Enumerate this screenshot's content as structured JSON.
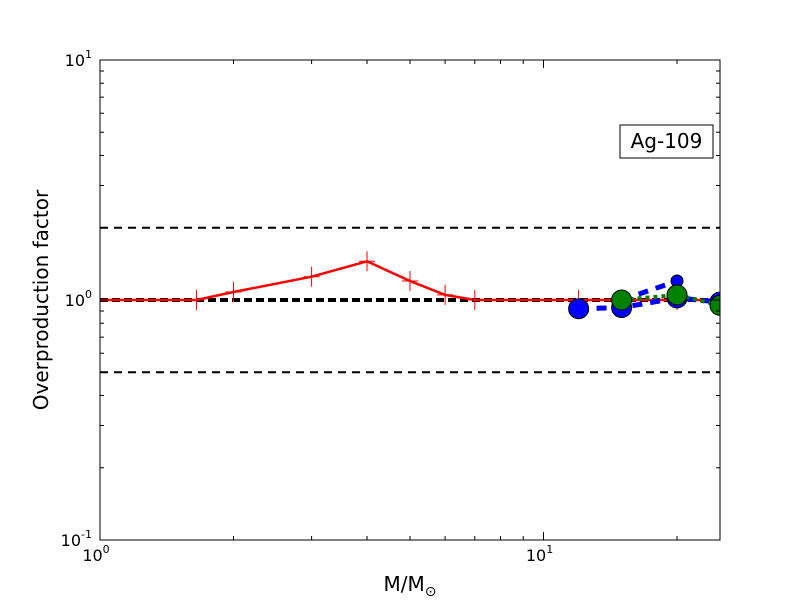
{
  "chart_data": {
    "type": "line",
    "xlabel_main": "M/M",
    "xlabel_symbol": "⊙",
    "ylabel": "Overproduction factor",
    "x_scale": "log",
    "y_scale": "log",
    "xlim": [
      1,
      25
    ],
    "ylim": [
      0.1,
      10
    ],
    "x_ticks": [
      {
        "value": 1,
        "base": "10",
        "exp": "0"
      },
      {
        "value": 10,
        "base": "10",
        "exp": "1"
      }
    ],
    "y_ticks": [
      {
        "value": 0.1,
        "base": "10",
        "exp": "-1"
      },
      {
        "value": 1,
        "base": "10",
        "exp": "0"
      },
      {
        "value": 10,
        "base": "10",
        "exp": "1"
      }
    ],
    "annotation": "Ag-109",
    "reference_lines": [
      {
        "y": 2.0,
        "style": "dashed",
        "color": "#000000",
        "width": 2
      },
      {
        "y": 1.0,
        "style": "dashed",
        "color": "#000000",
        "width": 4
      },
      {
        "y": 0.5,
        "style": "dashed",
        "color": "#000000",
        "width": 2
      }
    ],
    "series": [
      {
        "color": "#ff0000",
        "style": "solid",
        "marker": "plus",
        "x": [
          1.0,
          1.65,
          2.0,
          3.0,
          4.0,
          5.0,
          6.0,
          7.0,
          12.0,
          15.0,
          20.0,
          25.0
        ],
        "y": [
          1.0,
          1.0,
          1.08,
          1.25,
          1.45,
          1.2,
          1.05,
          1.0,
          1.0,
          1.0,
          1.0,
          1.0
        ]
      },
      {
        "color": "#0000ff",
        "style": "dashed",
        "marker": "circle",
        "x": [
          12.0,
          15.0,
          20.0,
          25.0
        ],
        "y": [
          0.92,
          0.93,
          1.02,
          0.98
        ]
      },
      {
        "color": "#0000ff",
        "style": "dashed",
        "marker": "circle-small",
        "x": [
          15.0,
          20.0
        ],
        "y": [
          1.0,
          1.2
        ]
      },
      {
        "color": "#008000",
        "style": "dotted",
        "marker": "circle",
        "x": [
          15.0,
          20.0,
          25.0
        ],
        "y": [
          1.0,
          1.05,
          0.95
        ]
      }
    ]
  }
}
